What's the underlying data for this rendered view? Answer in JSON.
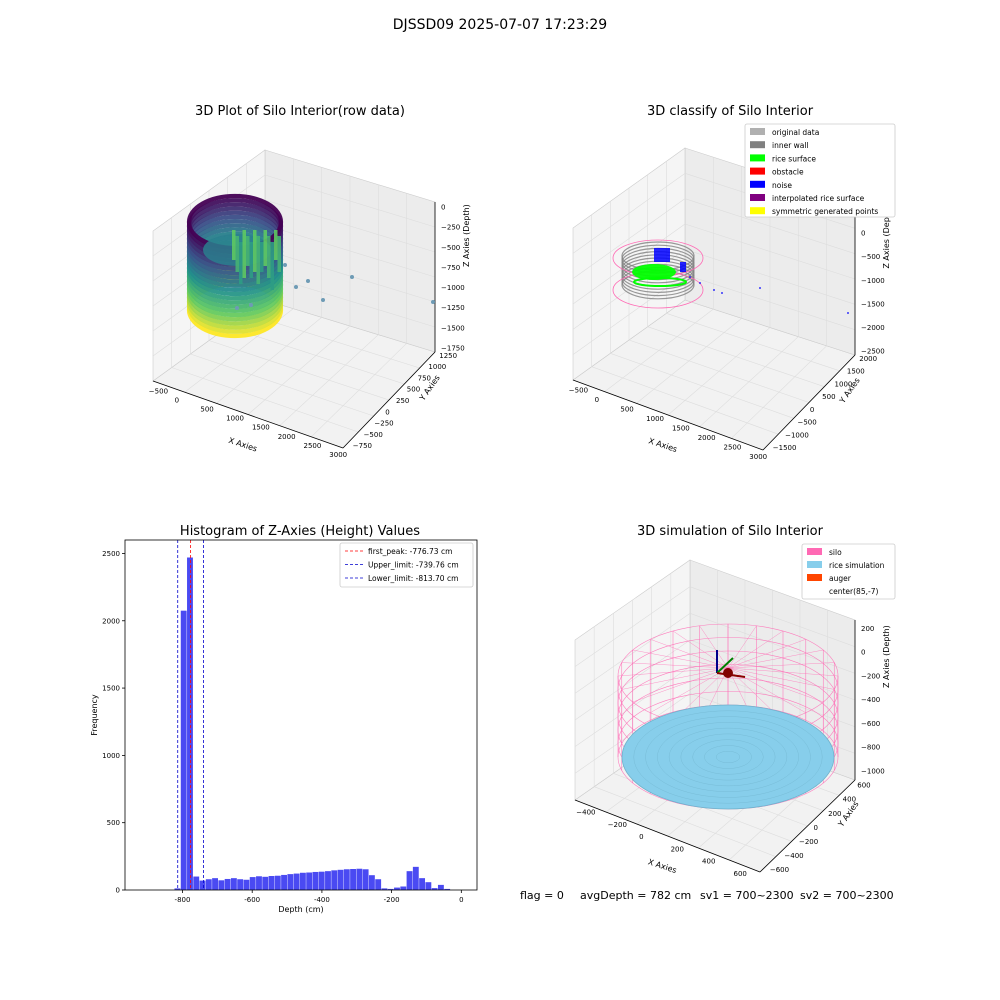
{
  "suptitle": "DJSSD09 2025-07-07 17:23:29",
  "status": {
    "flag": "flag = 0",
    "avg_depth": "avgDepth = 782 cm",
    "sv1": "sv1 = 700~2300",
    "sv2": "sv2 = 700~2300"
  },
  "colors": {
    "original": "#b0b0b0",
    "inner_wall": "#808080",
    "rice_surface": "#00ff00",
    "obstacle": "#ff0000",
    "noise": "#0000ff",
    "interpolated": "#800080",
    "symmetric": "#ffff00",
    "silo": "#ff69b4",
    "rice_sim": "#87ceeb",
    "auger": "#ff4500",
    "hist_bar": "#4a4af2"
  },
  "chart_data": [
    {
      "type": "scatter",
      "projection": "3d",
      "title": "3D Plot of Silo Interior(row data)",
      "xlabel": "X Axies",
      "ylabel": "Y Axies",
      "zlabel": "Z Axies (Depth)",
      "xticks": [
        "−500",
        "0",
        "500",
        "1000",
        "1500",
        "2000",
        "2500",
        "3000"
      ],
      "yticks": [
        "−750",
        "−500",
        "−250",
        "0",
        "250",
        "500",
        "750",
        "1000",
        "1250"
      ],
      "zticks": [
        "0",
        "−250",
        "−500",
        "−750",
        "−1000",
        "−1250",
        "−1500",
        "−1750"
      ],
      "colormap": "viridis",
      "outliers": [
        {
          "x": 1400,
          "y": 250,
          "z": -1150
        },
        {
          "x": 3300,
          "y": 350,
          "z": -1300
        },
        {
          "x": 1250,
          "y": -250,
          "z": -1100
        },
        {
          "x": 1050,
          "y": -100,
          "z": -1350
        },
        {
          "x": 700,
          "y": 50,
          "z": -1250
        }
      ]
    },
    {
      "type": "scatter",
      "projection": "3d",
      "title": "3D classify of Silo Interior",
      "xlabel": "X Axies",
      "ylabel": "Y Axies",
      "zlabel": "Z Axies (Depth)",
      "xticks": [
        "−500",
        "0",
        "500",
        "1000",
        "1500",
        "2000",
        "2500",
        "3000"
      ],
      "yticks": [
        "−1500",
        "−1000",
        "−500",
        "0",
        "500",
        "1000",
        "1500",
        "2000"
      ],
      "zticks": [
        "500",
        "0",
        "−500",
        "−1000",
        "−1500",
        "−2000",
        "−2500"
      ],
      "legend": [
        {
          "label": "original data",
          "color": "#b0b0b0"
        },
        {
          "label": "inner wall",
          "color": "#808080"
        },
        {
          "label": "rice surface",
          "color": "#00ff00"
        },
        {
          "label": "obstacle",
          "color": "#ff0000"
        },
        {
          "label": "noise",
          "color": "#0000ff"
        },
        {
          "label": "interpolated rice surface",
          "color": "#800080"
        },
        {
          "label": "symmetric generated points",
          "color": "#ffff00"
        }
      ],
      "legend_position": "top-right"
    },
    {
      "type": "bar",
      "title": "Histogram of Z-Axies (Height) Values",
      "xlabel": "Depth (cm)",
      "ylabel": "Frequency",
      "xlim": [
        -965,
        45
      ],
      "ylim": [
        0,
        2600
      ],
      "xticks": [
        -800,
        -600,
        -400,
        -200,
        0
      ],
      "yticks": [
        0,
        500,
        1000,
        1500,
        2000,
        2500
      ],
      "bin_width": 18,
      "bins": [
        {
          "x": -823,
          "v": 12
        },
        {
          "x": -805,
          "v": 2075
        },
        {
          "x": -787,
          "v": 2470
        },
        {
          "x": -769,
          "v": 100
        },
        {
          "x": -751,
          "v": 70
        },
        {
          "x": -733,
          "v": 80
        },
        {
          "x": -715,
          "v": 88
        },
        {
          "x": -697,
          "v": 72
        },
        {
          "x": -679,
          "v": 82
        },
        {
          "x": -661,
          "v": 88
        },
        {
          "x": -643,
          "v": 80
        },
        {
          "x": -625,
          "v": 76
        },
        {
          "x": -607,
          "v": 96
        },
        {
          "x": -589,
          "v": 102
        },
        {
          "x": -571,
          "v": 98
        },
        {
          "x": -553,
          "v": 104
        },
        {
          "x": -535,
          "v": 106
        },
        {
          "x": -517,
          "v": 112
        },
        {
          "x": -499,
          "v": 118
        },
        {
          "x": -481,
          "v": 122
        },
        {
          "x": -463,
          "v": 128
        },
        {
          "x": -445,
          "v": 130
        },
        {
          "x": -427,
          "v": 134
        },
        {
          "x": -409,
          "v": 136
        },
        {
          "x": -391,
          "v": 140
        },
        {
          "x": -373,
          "v": 146
        },
        {
          "x": -355,
          "v": 150
        },
        {
          "x": -337,
          "v": 154
        },
        {
          "x": -319,
          "v": 156
        },
        {
          "x": -301,
          "v": 158
        },
        {
          "x": -283,
          "v": 154
        },
        {
          "x": -265,
          "v": 110
        },
        {
          "x": -247,
          "v": 80
        },
        {
          "x": -229,
          "v": 12
        },
        {
          "x": -211,
          "v": 8
        },
        {
          "x": -193,
          "v": 18
        },
        {
          "x": -175,
          "v": 26
        },
        {
          "x": -157,
          "v": 140
        },
        {
          "x": -139,
          "v": 172
        },
        {
          "x": -121,
          "v": 88
        },
        {
          "x": -103,
          "v": 58
        },
        {
          "x": -85,
          "v": 14
        },
        {
          "x": -67,
          "v": 38
        },
        {
          "x": -49,
          "v": 8
        }
      ],
      "lines": [
        {
          "label": "first_peak: -776.73 cm",
          "x": -776.73,
          "color": "#ff0000"
        },
        {
          "label": "Upper_limit: -739.76 cm",
          "x": -739.76,
          "color": "#0000cc"
        },
        {
          "label": "Lower_limit: -813.70 cm",
          "x": -813.7,
          "color": "#0000cc"
        }
      ],
      "legend_position": "top-right"
    },
    {
      "type": "surface",
      "projection": "3d",
      "title": "3D simulation of Silo Interior",
      "xlabel": "X Axies",
      "ylabel": "Y Axies",
      "zlabel": "Z Axies (Depth)",
      "xticks": [
        "−400",
        "−200",
        "0",
        "200",
        "400",
        "600"
      ],
      "yticks": [
        "−600",
        "−400",
        "−200",
        "0",
        "200",
        "400",
        "600"
      ],
      "zticks": [
        "200",
        "0",
        "−200",
        "−400",
        "−600",
        "−800",
        "−1000"
      ],
      "legend": [
        {
          "label": "silo",
          "color": "#ff69b4"
        },
        {
          "label": "rice simulation",
          "color": "#87ceeb"
        },
        {
          "label": "auger",
          "color": "#ff4500"
        },
        {
          "label": "center(85,-7)",
          "color": ""
        }
      ],
      "legend_position": "top-right"
    }
  ]
}
